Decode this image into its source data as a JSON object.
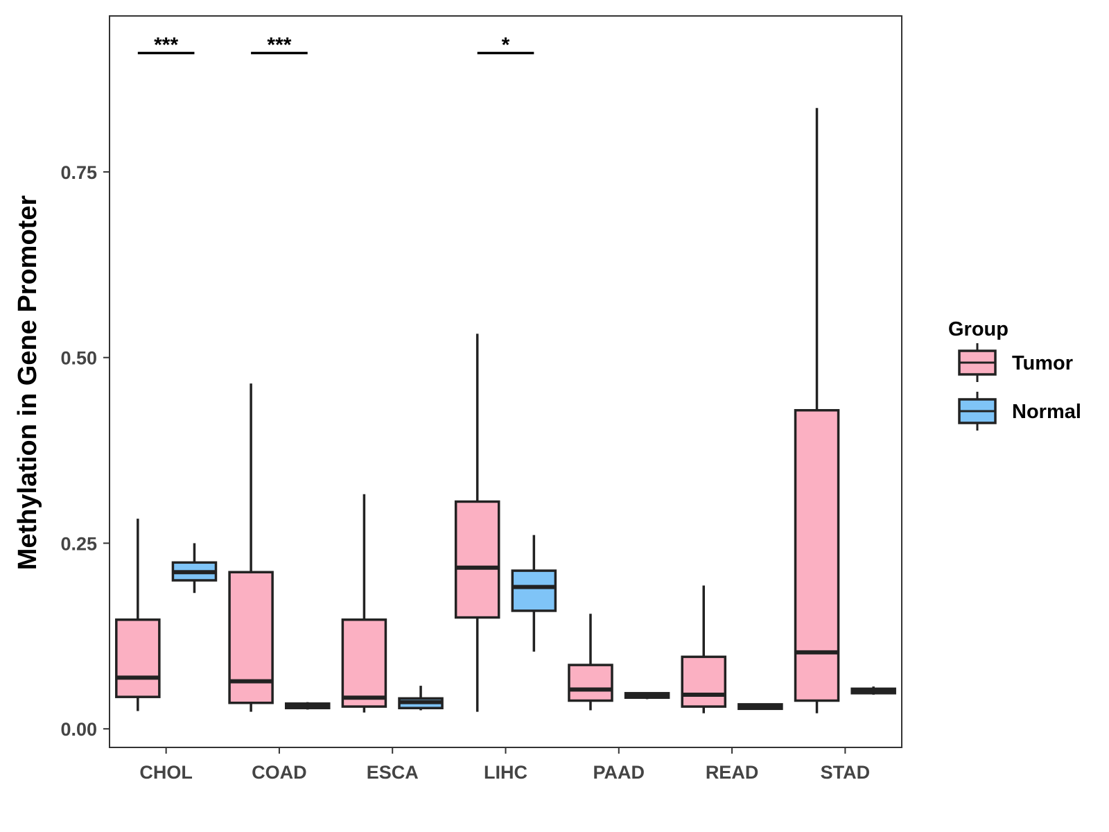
{
  "chart_data": {
    "type": "boxplot",
    "title": "",
    "xlabel": "",
    "ylabel": "Methylation in Gene Promoter",
    "ylim": [
      -0.025,
      0.96
    ],
    "yticks": [
      0.0,
      0.25,
      0.5,
      0.75
    ],
    "ytick_labels": [
      "0.00",
      "0.25",
      "0.50",
      "0.75"
    ],
    "categories": [
      "CHOL",
      "COAD",
      "ESCA",
      "LIHC",
      "PAAD",
      "READ",
      "STAD"
    ],
    "colors": {
      "Tumor": "#FBB0C2",
      "Normal": "#7FC4F7"
    },
    "series": [
      {
        "name": "Tumor",
        "boxes": [
          {
            "min": 0.024,
            "q1": 0.043,
            "median": 0.069,
            "q3": 0.147,
            "max": 0.283
          },
          {
            "min": 0.023,
            "q1": 0.035,
            "median": 0.064,
            "q3": 0.211,
            "max": 0.465
          },
          {
            "min": 0.022,
            "q1": 0.03,
            "median": 0.042,
            "q3": 0.147,
            "max": 0.316
          },
          {
            "min": 0.023,
            "q1": 0.15,
            "median": 0.217,
            "q3": 0.306,
            "max": 0.532
          },
          {
            "min": 0.025,
            "q1": 0.038,
            "median": 0.053,
            "q3": 0.086,
            "max": 0.155
          },
          {
            "min": 0.021,
            "q1": 0.03,
            "median": 0.046,
            "q3": 0.097,
            "max": 0.193
          },
          {
            "min": 0.021,
            "q1": 0.038,
            "median": 0.103,
            "q3": 0.429,
            "max": 0.836
          }
        ]
      },
      {
        "name": "Normal",
        "boxes": [
          {
            "min": 0.183,
            "q1": 0.2,
            "median": 0.211,
            "q3": 0.224,
            "max": 0.25
          },
          {
            "min": 0.026,
            "q1": 0.028,
            "median": 0.031,
            "q3": 0.034,
            "max": 0.036
          },
          {
            "min": 0.025,
            "q1": 0.028,
            "median": 0.036,
            "q3": 0.041,
            "max": 0.058
          },
          {
            "min": 0.104,
            "q1": 0.159,
            "median": 0.191,
            "q3": 0.213,
            "max": 0.261
          },
          {
            "min": 0.04,
            "q1": 0.042,
            "median": 0.045,
            "q3": 0.048,
            "max": 0.049
          },
          {
            "min": 0.026,
            "q1": 0.027,
            "median": 0.03,
            "q3": 0.033,
            "max": 0.034
          },
          {
            "min": 0.046,
            "q1": 0.048,
            "median": 0.051,
            "q3": 0.054,
            "max": 0.057
          }
        ]
      }
    ],
    "significance": [
      {
        "category": "CHOL",
        "label": "***"
      },
      {
        "category": "COAD",
        "label": "***"
      },
      {
        "category": "LIHC",
        "label": "*"
      }
    ],
    "significance_level": 0.91,
    "legend": {
      "title": "Group",
      "entries": [
        "Tumor",
        "Normal"
      ],
      "placement": "right"
    }
  }
}
